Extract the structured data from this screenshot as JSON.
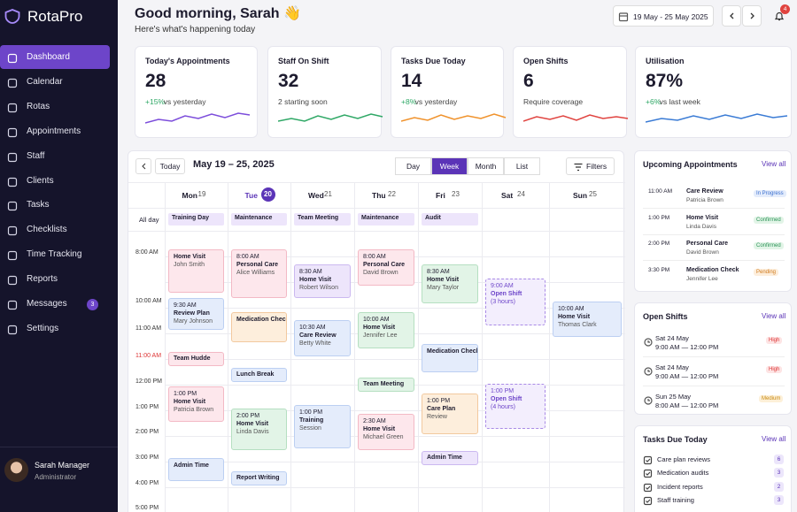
{
  "sidebar": {
    "brand": "RotaPro",
    "nav": [
      "Dashboard",
      "Calendar",
      "Rotas",
      "Appointments",
      "Staff",
      "Clients",
      "Tasks",
      "Checklists",
      "Time Tracking",
      "Reports",
      "Messages",
      "Settings"
    ],
    "messages_badge": "3",
    "user": {
      "name": "Sarah Manager",
      "role": "Administrator"
    }
  },
  "header": {
    "greeting": "Good morning, Sarah 👋",
    "subtitle": "Here's what's happening today",
    "date_range": "19 May - 25 May 2025",
    "notifications": "4"
  },
  "stats": [
    {
      "title": "Today's Appointments",
      "value": "28",
      "change": "+15%",
      "note": "vs yesterday",
      "color": "#7c4ddb"
    },
    {
      "title": "Staff On Shift",
      "value": "32",
      "note": "2 starting soon",
      "color": "#2fa866"
    },
    {
      "title": "Tasks Due Today",
      "value": "14",
      "change": "+8%",
      "note": "vs yesterday",
      "color": "#f0922b"
    },
    {
      "title": "Open Shifts",
      "value": "6",
      "note": "Require coverage",
      "color": "#e0433f"
    },
    {
      "title": "Utilisation",
      "value": "87%",
      "change": "+6%",
      "note": "vs last week",
      "color": "#3a7bd5"
    }
  ],
  "calendar": {
    "today": "Today",
    "range": "May 19 – 25, 2025",
    "views": [
      "Day",
      "Week",
      "Month",
      "List"
    ],
    "active_view": "Week",
    "filters": "Filters",
    "allday_label": "All day",
    "times": [
      "8:00 AM",
      "10:00 AM",
      "11:00 AM",
      "11:00 AM",
      "12:00 PM",
      "1:00 PM",
      "2:00 PM",
      "3:00 PM",
      "4:00 PM",
      "5:00 PM"
    ],
    "days": [
      {
        "name": "Mon",
        "date": "19",
        "allday": "Training Day",
        "events": [
          {
            "title": "Home Visit",
            "person": "John Smith"
          },
          {
            "time": "9:30 AM",
            "title": "Review Plan",
            "person": "Mary Johnson"
          },
          {
            "title": "Team Hudde"
          },
          {
            "time": "1:00 PM",
            "title": "Home Visit",
            "person": "Patricia Brown"
          },
          {
            "title": "Admin Time"
          }
        ]
      },
      {
        "name": "Tue",
        "date": "20",
        "current": true,
        "allday": "Maintenance",
        "events": [
          {
            "time": "8:00 AM",
            "title": "Personal Care",
            "person": "Alice Williams"
          },
          {
            "title": "Medication Check"
          },
          {
            "title": "Lunch Break"
          },
          {
            "time": "2:00 PM",
            "title": "Home Visit",
            "person": "Linda Davis"
          },
          {
            "title": "Report Writing"
          }
        ]
      },
      {
        "name": "Wed",
        "date": "21",
        "allday": "Team Meeting",
        "events": [
          {
            "time": "8:30 AM",
            "title": "Home Visit",
            "person": "Robert Wilson"
          },
          {
            "time": "10:30 AM",
            "title": "Care Review",
            "person": "Betty White"
          },
          {
            "time": "1:00 PM",
            "title": "Training",
            "person": "Session"
          }
        ]
      },
      {
        "name": "Thu",
        "date": "22",
        "allday": "Maintenance",
        "events": [
          {
            "time": "8:00 AM",
            "title": "Personal Care",
            "person": "David Brown"
          },
          {
            "time": "10:00 AM",
            "title": "Home Visit",
            "person": "Jennifer Lee"
          },
          {
            "title": "Team Meeting"
          },
          {
            "time": "2:30 AM",
            "title": "Home Visit",
            "person": "Michael Green"
          }
        ]
      },
      {
        "name": "Fri",
        "date": "23",
        "allday": "Audit",
        "events": [
          {
            "time": "8:30 AM",
            "title": "Home Visit",
            "person": "Mary Taylor"
          },
          {
            "title": "Medication Check"
          },
          {
            "time": "1:00 PM",
            "title": "Care Plan",
            "person": "Review"
          },
          {
            "title": "Admin Time"
          }
        ]
      },
      {
        "name": "Sat",
        "date": "24",
        "events": [
          {
            "time": "9:00 AM",
            "title": "Open Shift",
            "person": "(3 hours)"
          },
          {
            "time": "1:00 PM",
            "title": "Open Shift",
            "person": "(4 hours)"
          }
        ]
      },
      {
        "name": "Sun",
        "date": "25",
        "events": [
          {
            "time": "10:00 AM",
            "title": "Home Visit",
            "person": "Thomas Clark"
          }
        ]
      }
    ]
  },
  "upcoming": {
    "title": "Upcoming Appointments",
    "view_all": "View all",
    "items": [
      {
        "time": "11:00 AM",
        "title": "Care Review",
        "person": "Patricia Brown",
        "status": "In Progress"
      },
      {
        "time": "1:00 PM",
        "title": "Home Visit",
        "person": "Linda Davis",
        "status": "Confirmed"
      },
      {
        "time": "2:00 PM",
        "title": "Personal Care",
        "person": "David Brown",
        "status": "Confirmed"
      },
      {
        "time": "3:30 PM",
        "title": "Medication Check",
        "person": "Jennifer Lee",
        "status": "Pending"
      }
    ]
  },
  "open_shifts": {
    "title": "Open Shifts",
    "view_all": "View all",
    "items": [
      {
        "date": "Sat 24 May",
        "time": "9:00 AM — 12:00 PM",
        "priority": "High"
      },
      {
        "date": "Sat 24 May",
        "time": "9:00 AM — 12:00 PM",
        "priority": "High"
      },
      {
        "date": "Sun 25 May",
        "time": "8:00 AM — 12:00 PM",
        "priority": "Medium"
      }
    ]
  },
  "tasks": {
    "title": "Tasks Due Today",
    "view_all": "View all",
    "items": [
      {
        "label": "Care plan reviews",
        "count": 6
      },
      {
        "label": "Medication audits",
        "count": 3
      },
      {
        "label": "Incident reports",
        "count": 2
      },
      {
        "label": "Staff training",
        "count": 3
      }
    ]
  }
}
